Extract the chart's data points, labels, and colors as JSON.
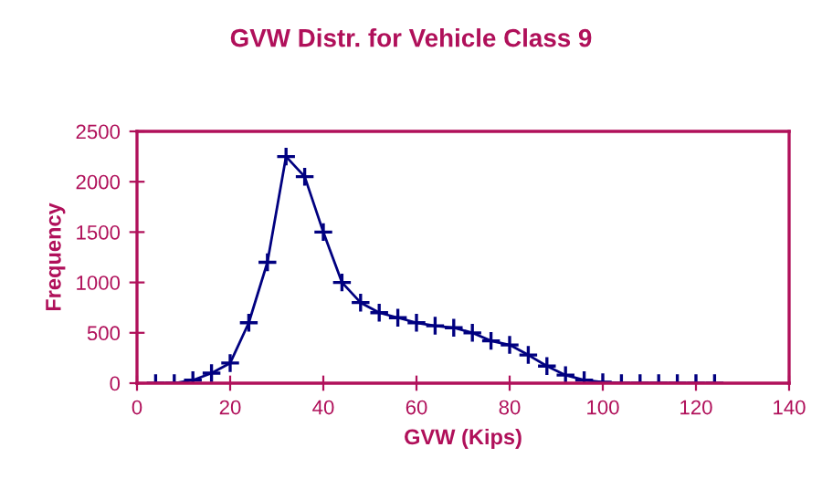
{
  "chart_data": {
    "type": "line",
    "title": "GVW Distr. for Vehicle Class 9",
    "xlabel": "GVW (Kips)",
    "ylabel": "Frequency",
    "x": [
      4,
      8,
      12,
      16,
      20,
      24,
      28,
      32,
      36,
      40,
      44,
      48,
      52,
      56,
      60,
      64,
      68,
      72,
      76,
      80,
      84,
      88,
      92,
      96,
      100,
      104,
      108,
      112,
      116,
      120,
      124
    ],
    "series": [
      {
        "color": "#000080",
        "values": [
          0,
          0,
          30,
          100,
          200,
          600,
          1200,
          2250,
          2050,
          1500,
          1000,
          800,
          700,
          650,
          600,
          570,
          550,
          500,
          420,
          380,
          280,
          170,
          80,
          30,
          10,
          0,
          0,
          0,
          0,
          0,
          0
        ]
      }
    ],
    "xlim": [
      0,
      140
    ],
    "xticks": [
      0,
      20,
      40,
      60,
      80,
      100,
      120,
      140
    ],
    "ylim": [
      0,
      2500
    ],
    "yticks": [
      0,
      500,
      1000,
      1500,
      2000,
      2500
    ],
    "marker": "cross",
    "line_style": "solid",
    "grid": false,
    "legend": false
  }
}
